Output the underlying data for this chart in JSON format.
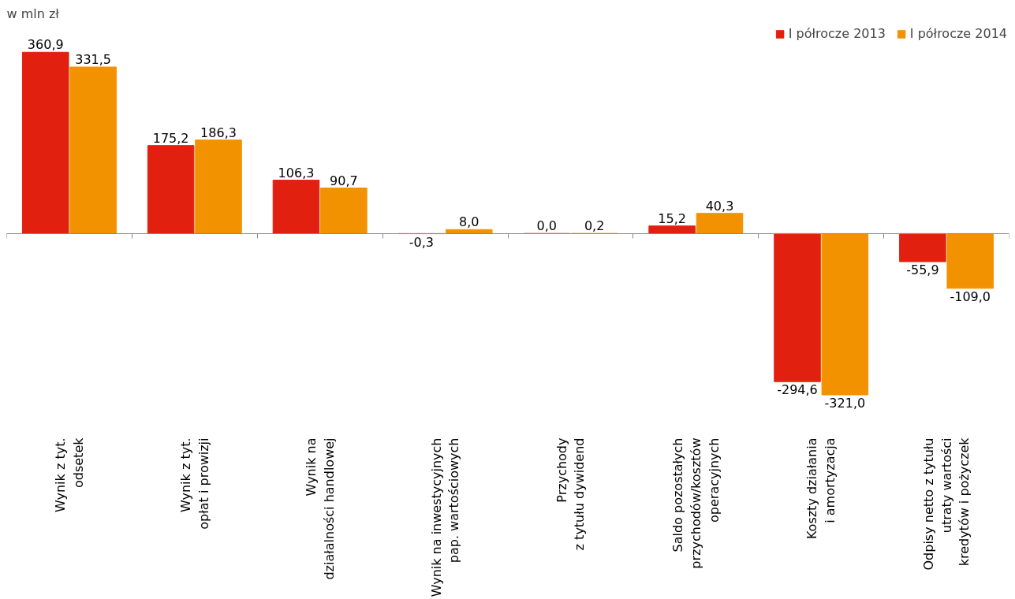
{
  "chart_data": {
    "type": "bar",
    "ylabel": "w mln zł",
    "categories": [
      "Wynik z tyt.\nodsetek",
      "Wynik z tyt.\nopłat i prowizji",
      "Wynik na\ndziałalności handlowej",
      "Wynik na inwestycyjnych\npap. wartościowych",
      "Przychody\nz tytułu dywidend",
      "Saldo pozostałych\nprzychodów/kosztów\noperacyjnych",
      "Koszty działania\ni amortyzacja",
      "Odpisy netto z tytułu\nutraty wartości\nkredytów i pożyczek"
    ],
    "series": [
      {
        "name": "I półrocze 2013",
        "color": "#e2200f",
        "values": [
          360.9,
          175.2,
          106.3,
          -0.3,
          0.0,
          15.2,
          -294.6,
          -55.9
        ],
        "value_labels": [
          "360,9",
          "175,2",
          "106,3",
          "-0,3",
          "0,0",
          "15,2",
          "-294,6",
          "-55,9"
        ]
      },
      {
        "name": "I półrocze 2014",
        "color": "#f39200",
        "values": [
          331.5,
          186.3,
          90.7,
          8.0,
          0.2,
          40.3,
          -321.0,
          -109.0
        ],
        "value_labels": [
          "331,5",
          "186,3",
          "90,7",
          "8,0",
          "0,2",
          "40,3",
          "-321,0",
          "-109,0"
        ]
      }
    ],
    "legend": "top right"
  }
}
